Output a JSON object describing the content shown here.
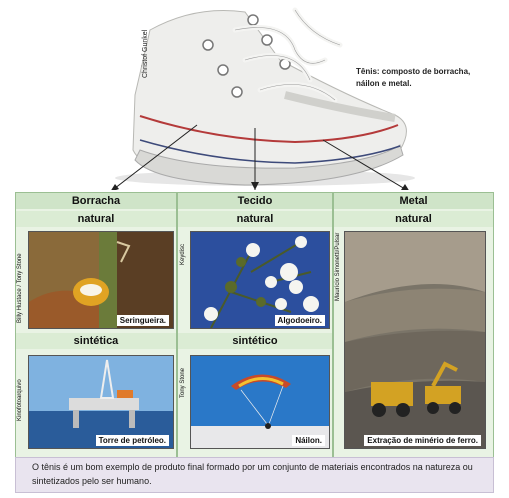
{
  "shoe": {
    "credit": "Christof Gunkel",
    "caption": "Tênis: composto de borracha, náilon e metal."
  },
  "columns": [
    {
      "title": "Borracha",
      "natural_label": "natural"
    },
    {
      "title": "Tecido",
      "natural_label": "natural"
    },
    {
      "title": "Metal",
      "natural_label": "natural"
    }
  ],
  "synthetic_labels": {
    "borracha": "sintética",
    "tecido": "sintético"
  },
  "photos": {
    "seringueira": {
      "label": "Seringueira.",
      "credit": "Billy Hustace / Tony Stone"
    },
    "algodoeiro": {
      "label": "Algodoeiro.",
      "credit": "Keydisc"
    },
    "mineria": {
      "label": "Extração de minério de ferro.",
      "credit": "Maurício Simonetti/Pulsar"
    },
    "petroleo": {
      "label": "Torre de petróleo.",
      "credit": "Kinofotoarquivo"
    },
    "nailon": {
      "label": "Náilon.",
      "credit": "Tony Stone"
    }
  },
  "footer": {
    "text": "O tênis é um bom exemplo de produto final formado por um conjunto de materiais encontrados na natureza ou sintetizados pelo ser humano."
  }
}
